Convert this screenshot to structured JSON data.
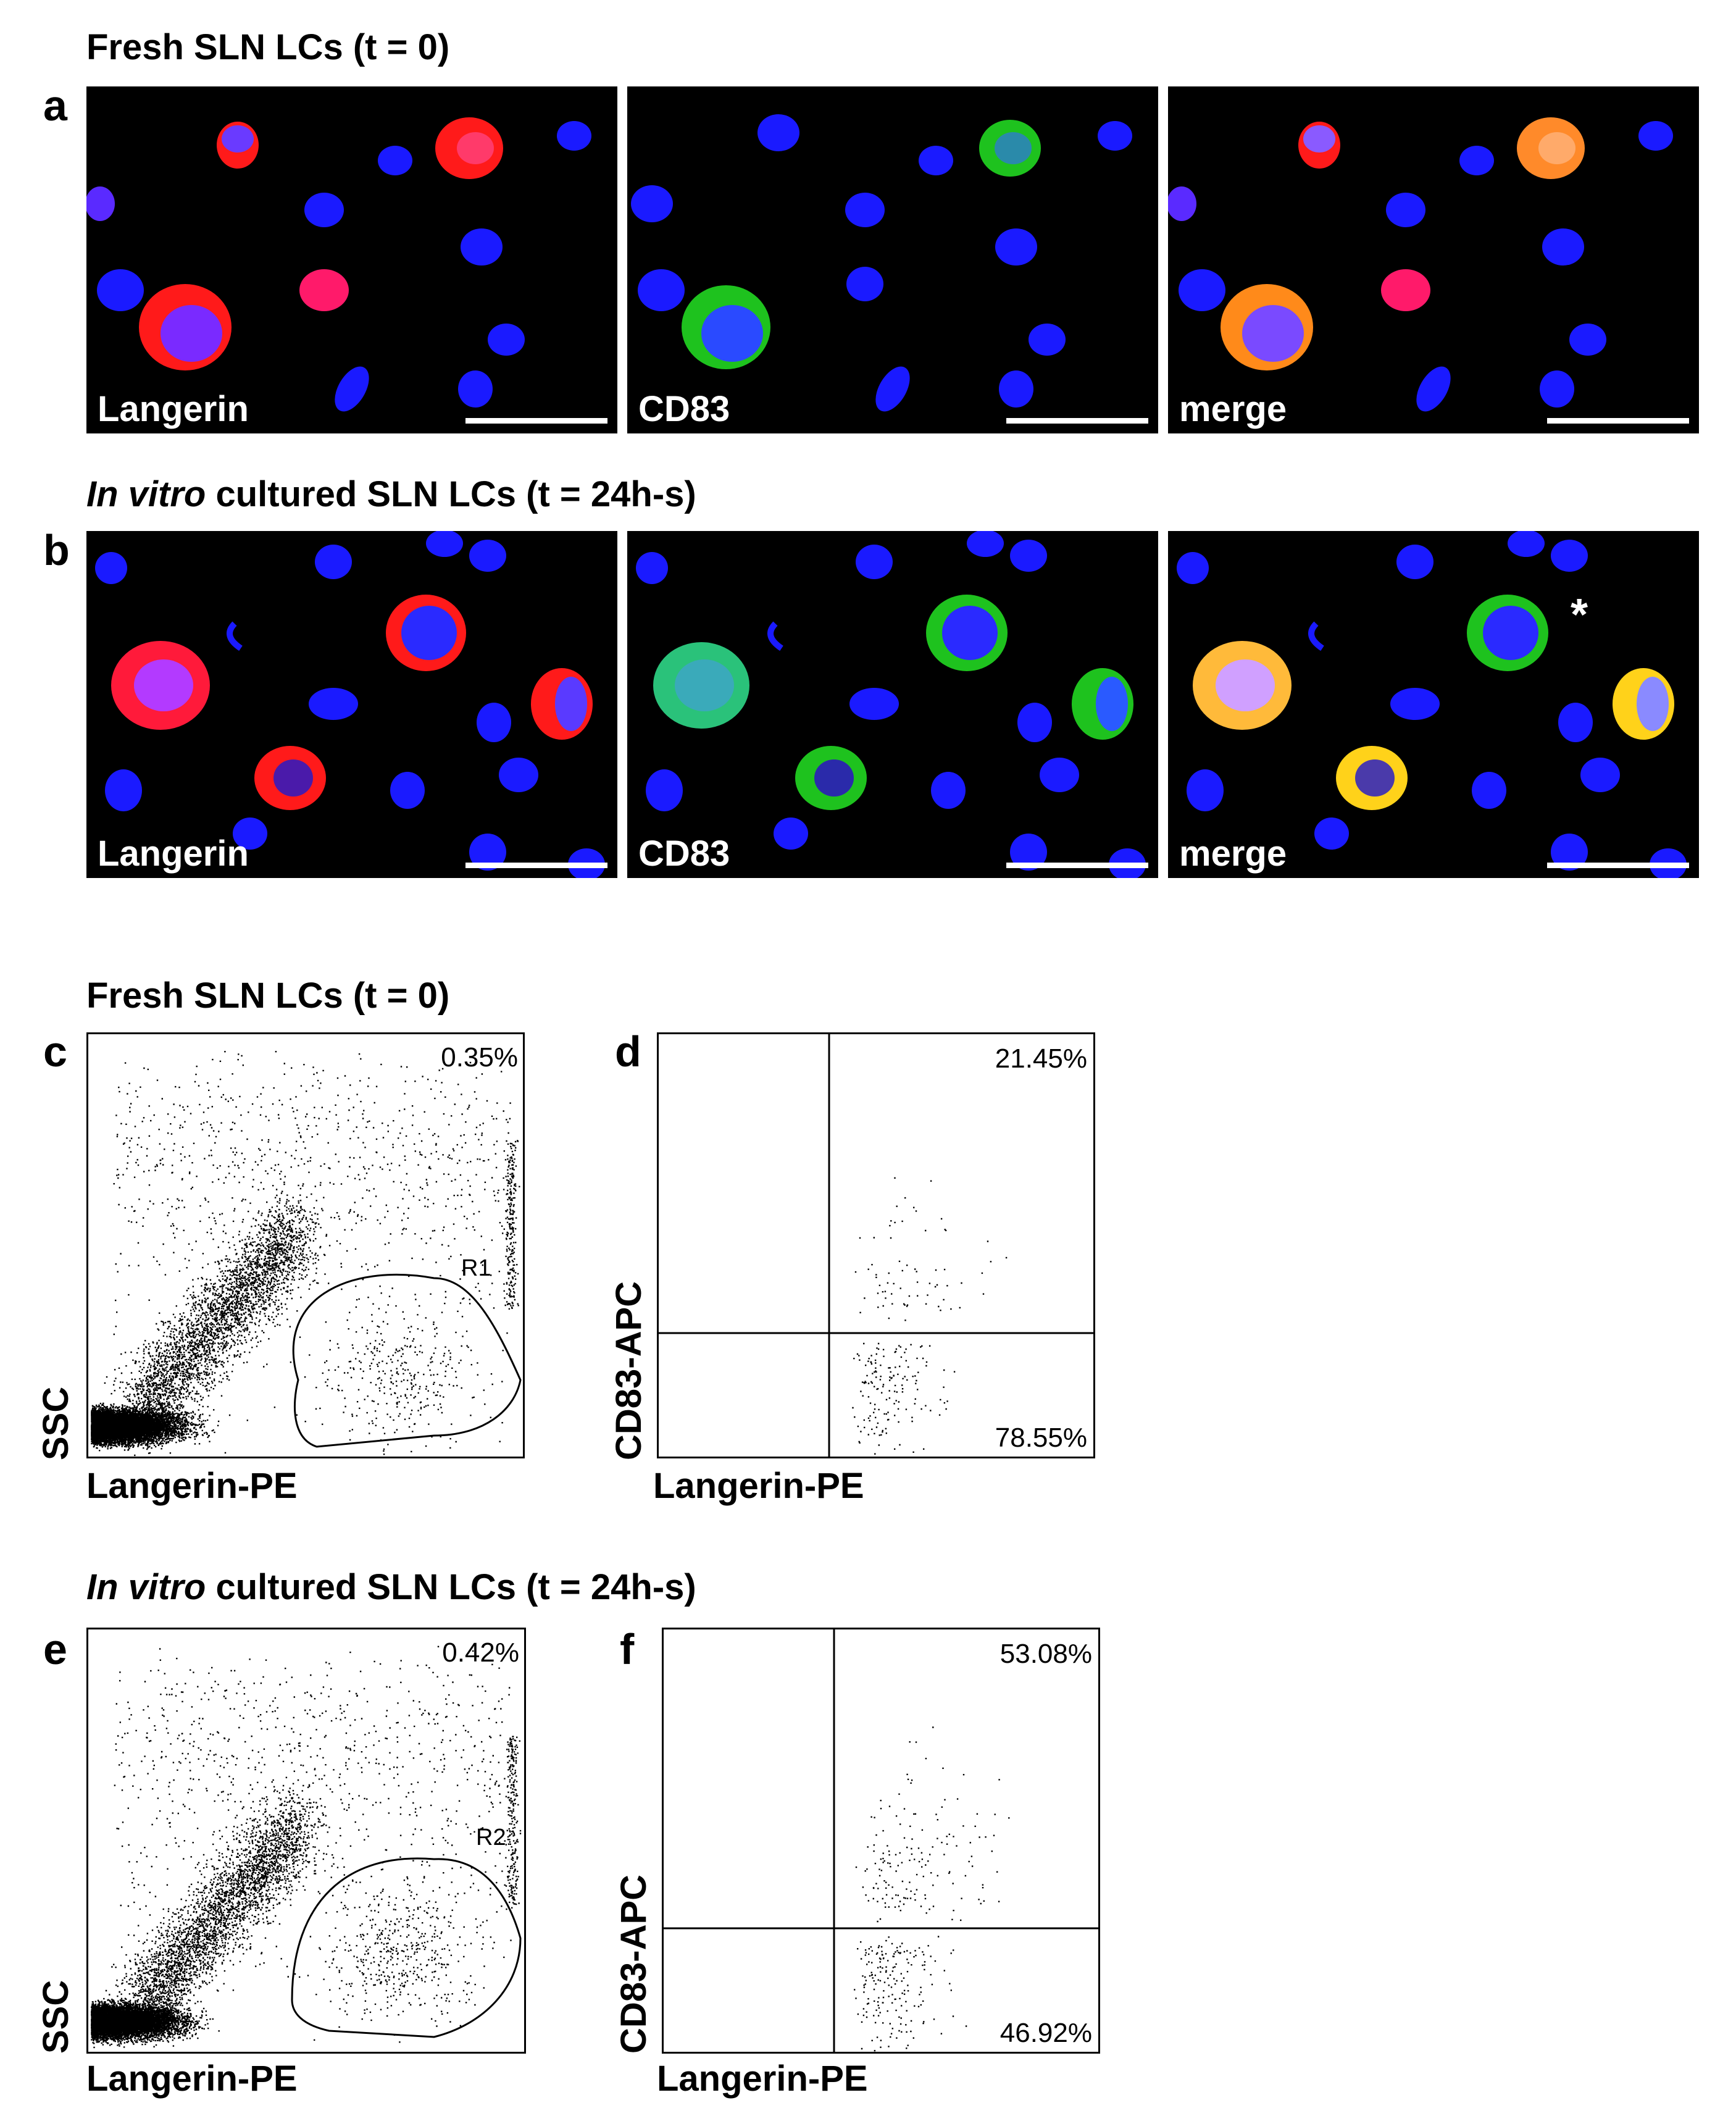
{
  "fig": {
    "sec_fresh_1": "Fresh SLN LCs (t = 0)",
    "sec_cult_1_ital": "In vitro",
    "sec_cult_1_rest": " cultured SLN LCs (t = 24h-s)",
    "sec_fresh_2": "Fresh SLN LCs (t = 0)",
    "sec_cult_2_ital": "In vitro",
    "sec_cult_2_rest": " cultured SLN LCs (t = 24h-s)",
    "letters": {
      "a": "a",
      "b": "b",
      "c": "c",
      "d": "d",
      "e": "e",
      "f": "f"
    },
    "micro_labels": {
      "langerin": "Langerin",
      "cd83": "CD83",
      "merge": "merge"
    },
    "asterisk": "*",
    "colors": {
      "nucleus": "#1a1aff",
      "langerin": "#ff1a1a",
      "cd83": "#1ec21e",
      "merge": "#ffc21a",
      "background": "#000000"
    }
  },
  "chart_data": [
    {
      "type": "scatter",
      "panel": "c",
      "xlabel": "Langerin-PE",
      "ylabel": "SSC",
      "gate": {
        "name": "R1",
        "percent": "0.35%"
      },
      "description_points": "dense population lower-left, gated population lower-right"
    },
    {
      "type": "scatter",
      "panel": "d",
      "xlabel": "Langerin-PE",
      "ylabel": "CD83-APC",
      "quadrants": {
        "upper_right": "21.45%",
        "lower_right": "78.55%"
      }
    },
    {
      "type": "scatter",
      "panel": "e",
      "xlabel": "Langerin-PE",
      "ylabel": "SSC",
      "gate": {
        "name": "R2",
        "percent": "0.42%"
      }
    },
    {
      "type": "scatter",
      "panel": "f",
      "xlabel": "Langerin-PE",
      "ylabel": "CD83-APC",
      "quadrants": {
        "upper_right": "53.08%",
        "lower_right": "46.92%"
      }
    }
  ]
}
